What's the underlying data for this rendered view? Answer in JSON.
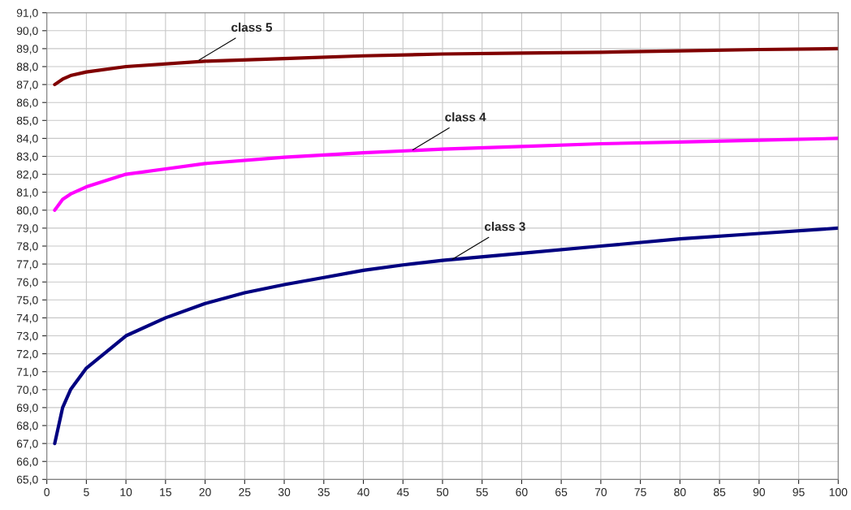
{
  "chart_data": {
    "type": "line",
    "xlim": [
      0,
      100
    ],
    "ylim": [
      65,
      91
    ],
    "xticks": [
      0,
      5,
      10,
      15,
      20,
      25,
      30,
      35,
      40,
      45,
      50,
      55,
      60,
      65,
      70,
      75,
      80,
      85,
      90,
      95,
      100
    ],
    "yticks": [
      {
        "value": 65,
        "label": "65,0"
      },
      {
        "value": 66,
        "label": "66,0"
      },
      {
        "value": 67,
        "label": "67,0"
      },
      {
        "value": 68,
        "label": "68,0"
      },
      {
        "value": 69,
        "label": "69,0"
      },
      {
        "value": 70,
        "label": "70,0"
      },
      {
        "value": 71,
        "label": "71,0"
      },
      {
        "value": 72,
        "label": "72,0"
      },
      {
        "value": 73,
        "label": "73,0"
      },
      {
        "value": 74,
        "label": "74,0"
      },
      {
        "value": 75,
        "label": "75,0"
      },
      {
        "value": 76,
        "label": "76,0"
      },
      {
        "value": 77,
        "label": "77,0"
      },
      {
        "value": 78,
        "label": "78,0"
      },
      {
        "value": 79,
        "label": "79,0"
      },
      {
        "value": 80,
        "label": "80,0"
      },
      {
        "value": 81,
        "label": "81,0"
      },
      {
        "value": 82,
        "label": "82,0"
      },
      {
        "value": 83,
        "label": "83,0"
      },
      {
        "value": 84,
        "label": "84,0"
      },
      {
        "value": 85,
        "label": "85,0"
      },
      {
        "value": 86,
        "label": "86,0"
      },
      {
        "value": 87,
        "label": "87,0"
      },
      {
        "value": 88,
        "label": "88,0"
      },
      {
        "value": 89,
        "label": "89,0"
      },
      {
        "value": 90,
        "label": "90,0"
      },
      {
        "value": 91,
        "label": "91,0"
      }
    ],
    "grid": true,
    "marker": "none",
    "line_style": "solid",
    "series": [
      {
        "color": "#800000",
        "x": [
          1,
          2,
          3,
          5,
          10,
          20,
          30,
          40,
          50,
          60,
          70,
          80,
          90,
          100
        ],
        "values": [
          87.0,
          87.3,
          87.5,
          87.7,
          88.0,
          88.3,
          88.45,
          88.6,
          88.7,
          88.75,
          88.8,
          88.88,
          88.95,
          89.0
        ]
      },
      {
        "color": "#ff00ff",
        "x": [
          1,
          2,
          3,
          5,
          10,
          15,
          20,
          30,
          40,
          50,
          60,
          70,
          80,
          90,
          100
        ],
        "values": [
          80.0,
          80.6,
          80.9,
          81.3,
          82.0,
          82.3,
          82.6,
          82.95,
          83.2,
          83.4,
          83.55,
          83.7,
          83.8,
          83.9,
          84.0
        ]
      },
      {
        "color": "#000080",
        "x": [
          1,
          2,
          3,
          5,
          10,
          15,
          20,
          25,
          30,
          35,
          40,
          45,
          50,
          60,
          70,
          80,
          90,
          100
        ],
        "values": [
          67.0,
          69.0,
          70.0,
          71.2,
          73.0,
          74.0,
          74.8,
          75.4,
          75.85,
          76.25,
          76.65,
          76.95,
          77.2,
          77.6,
          78.0,
          78.4,
          78.7,
          79.0
        ]
      }
    ],
    "annotations": [
      {
        "text": "class 5",
        "x": 19,
        "y": 88.3
      },
      {
        "text": "class 4",
        "x": 46,
        "y": 83.3
      },
      {
        "text": "class 3",
        "x": 51,
        "y": 77.2
      }
    ]
  }
}
